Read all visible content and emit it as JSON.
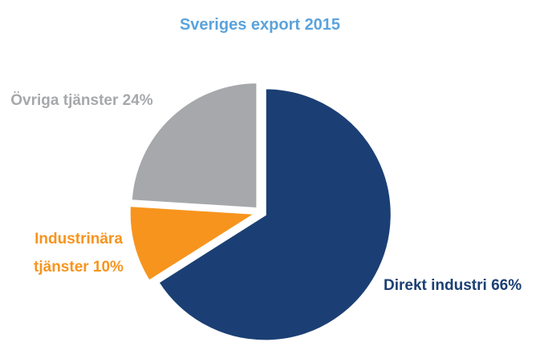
{
  "chart_data": {
    "type": "pie",
    "title": "Sveriges export 2015",
    "title_color": "#5BA3DC",
    "start": "12 o'clock, clockwise",
    "slices": [
      {
        "label": "Direkt industri 66%",
        "value": 66,
        "color": "#1B3F74",
        "label_color": "#1B3F74",
        "exploded": true
      },
      {
        "label": "Industrinära tjänster 10%",
        "label_lines": [
          "Industrinära",
          "tjänster 10%"
        ],
        "value": 10,
        "color": "#F7941D",
        "label_color": "#F7941D",
        "exploded": true
      },
      {
        "label": "Övriga tjänster 24%",
        "value": 24,
        "color": "#A6A8AB",
        "label_color": "#A6A8AB",
        "exploded": true
      }
    ]
  }
}
